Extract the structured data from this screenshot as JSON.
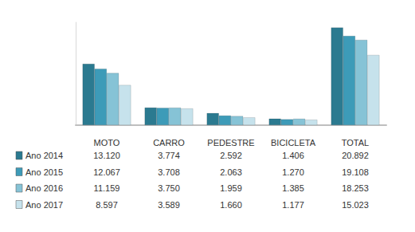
{
  "chart_data": {
    "type": "bar",
    "categories": [
      "MOTO",
      "CARRO",
      "PEDESTRE",
      "BICICLETA",
      "TOTAL"
    ],
    "series": [
      {
        "name": "Ano 2014",
        "color": "#2b7a90",
        "values": [
          13120,
          3774,
          2592,
          1406,
          20892
        ],
        "value_labels": [
          "13.120",
          "3.774",
          "2.592",
          "1.406",
          "20.892"
        ]
      },
      {
        "name": "Ano 2015",
        "color": "#3d9bb8",
        "values": [
          12067,
          3708,
          2063,
          1270,
          19108
        ],
        "value_labels": [
          "12.067",
          "3.708",
          "2.063",
          "1.270",
          "19.108"
        ]
      },
      {
        "name": "Ano 2016",
        "color": "#86c3d6",
        "values": [
          11159,
          3750,
          1959,
          1385,
          18253
        ],
        "value_labels": [
          "11.159",
          "3.750",
          "1.959",
          "1.385",
          "18.253"
        ]
      },
      {
        "name": "Ano 2017",
        "color": "#c6e2ec",
        "values": [
          8597,
          3589,
          1660,
          1177,
          15023
        ],
        "value_labels": [
          "8.597",
          "3.589",
          "1.660",
          "1.177",
          "15.023"
        ]
      }
    ],
    "ylim": [
      0,
      22000
    ],
    "yticks": [],
    "grid": false,
    "tick_labels": "x"
  }
}
